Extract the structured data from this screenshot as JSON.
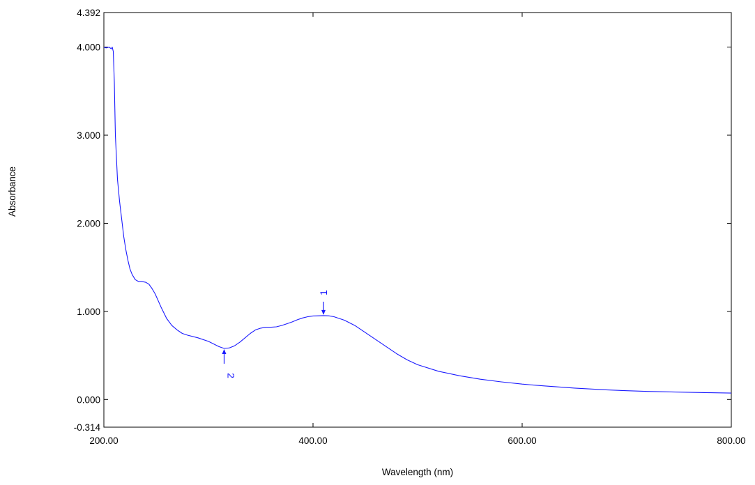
{
  "chart_data": {
    "type": "line",
    "title": "",
    "xlabel": "Wavelength (nm)",
    "ylabel": "Absorbance",
    "xlim": [
      200,
      800
    ],
    "ylim": [
      -0.314,
      4.392
    ],
    "grid": false,
    "x_ticks": [
      {
        "value": 200,
        "label": "200.00"
      },
      {
        "value": 400,
        "label": "400.00"
      },
      {
        "value": 600,
        "label": "600.00"
      },
      {
        "value": 800,
        "label": "800.00"
      }
    ],
    "y_ticks": [
      {
        "value": 4.392,
        "label": "4.392"
      },
      {
        "value": 4.0,
        "label": "4.000"
      },
      {
        "value": 3.0,
        "label": "3.000"
      },
      {
        "value": 2.0,
        "label": "2.000"
      },
      {
        "value": 1.0,
        "label": "1.000"
      },
      {
        "value": 0.0,
        "label": "0.000"
      },
      {
        "value": -0.314,
        "label": "-0.314"
      }
    ],
    "series": [
      {
        "color": "#1a1aff",
        "x": [
          200,
          202,
          205,
          207,
          208,
          209,
          210,
          211,
          212,
          213,
          215,
          217,
          219,
          221,
          223,
          225,
          227,
          230,
          233,
          236,
          240,
          243,
          246,
          249,
          252,
          255,
          260,
          265,
          270,
          275,
          280,
          290,
          300,
          305,
          310,
          315,
          320,
          325,
          330,
          335,
          340,
          345,
          350,
          355,
          360,
          365,
          370,
          375,
          380,
          385,
          390,
          395,
          400,
          405,
          410,
          415,
          420,
          430,
          440,
          450,
          460,
          470,
          480,
          490,
          500,
          520,
          540,
          560,
          580,
          600,
          620,
          650,
          680,
          700,
          720,
          750,
          780,
          800
        ],
        "y": [
          4.0,
          3.99,
          4.0,
          3.98,
          4.0,
          3.95,
          3.6,
          3.0,
          2.75,
          2.5,
          2.25,
          2.05,
          1.85,
          1.7,
          1.58,
          1.48,
          1.42,
          1.36,
          1.34,
          1.34,
          1.33,
          1.31,
          1.26,
          1.2,
          1.12,
          1.04,
          0.92,
          0.84,
          0.79,
          0.75,
          0.73,
          0.7,
          0.66,
          0.63,
          0.6,
          0.58,
          0.585,
          0.61,
          0.65,
          0.7,
          0.75,
          0.79,
          0.81,
          0.82,
          0.82,
          0.825,
          0.84,
          0.86,
          0.88,
          0.905,
          0.925,
          0.94,
          0.948,
          0.95,
          0.952,
          0.95,
          0.94,
          0.9,
          0.84,
          0.76,
          0.68,
          0.6,
          0.52,
          0.45,
          0.395,
          0.32,
          0.27,
          0.23,
          0.2,
          0.175,
          0.155,
          0.13,
          0.11,
          0.1,
          0.092,
          0.084,
          0.077,
          0.073
        ]
      }
    ],
    "annotations": [
      {
        "label": "1",
        "x": 410,
        "y": 0.952,
        "type": "peak"
      },
      {
        "label": "2",
        "x": 315,
        "y": 0.58,
        "type": "valley"
      }
    ]
  }
}
